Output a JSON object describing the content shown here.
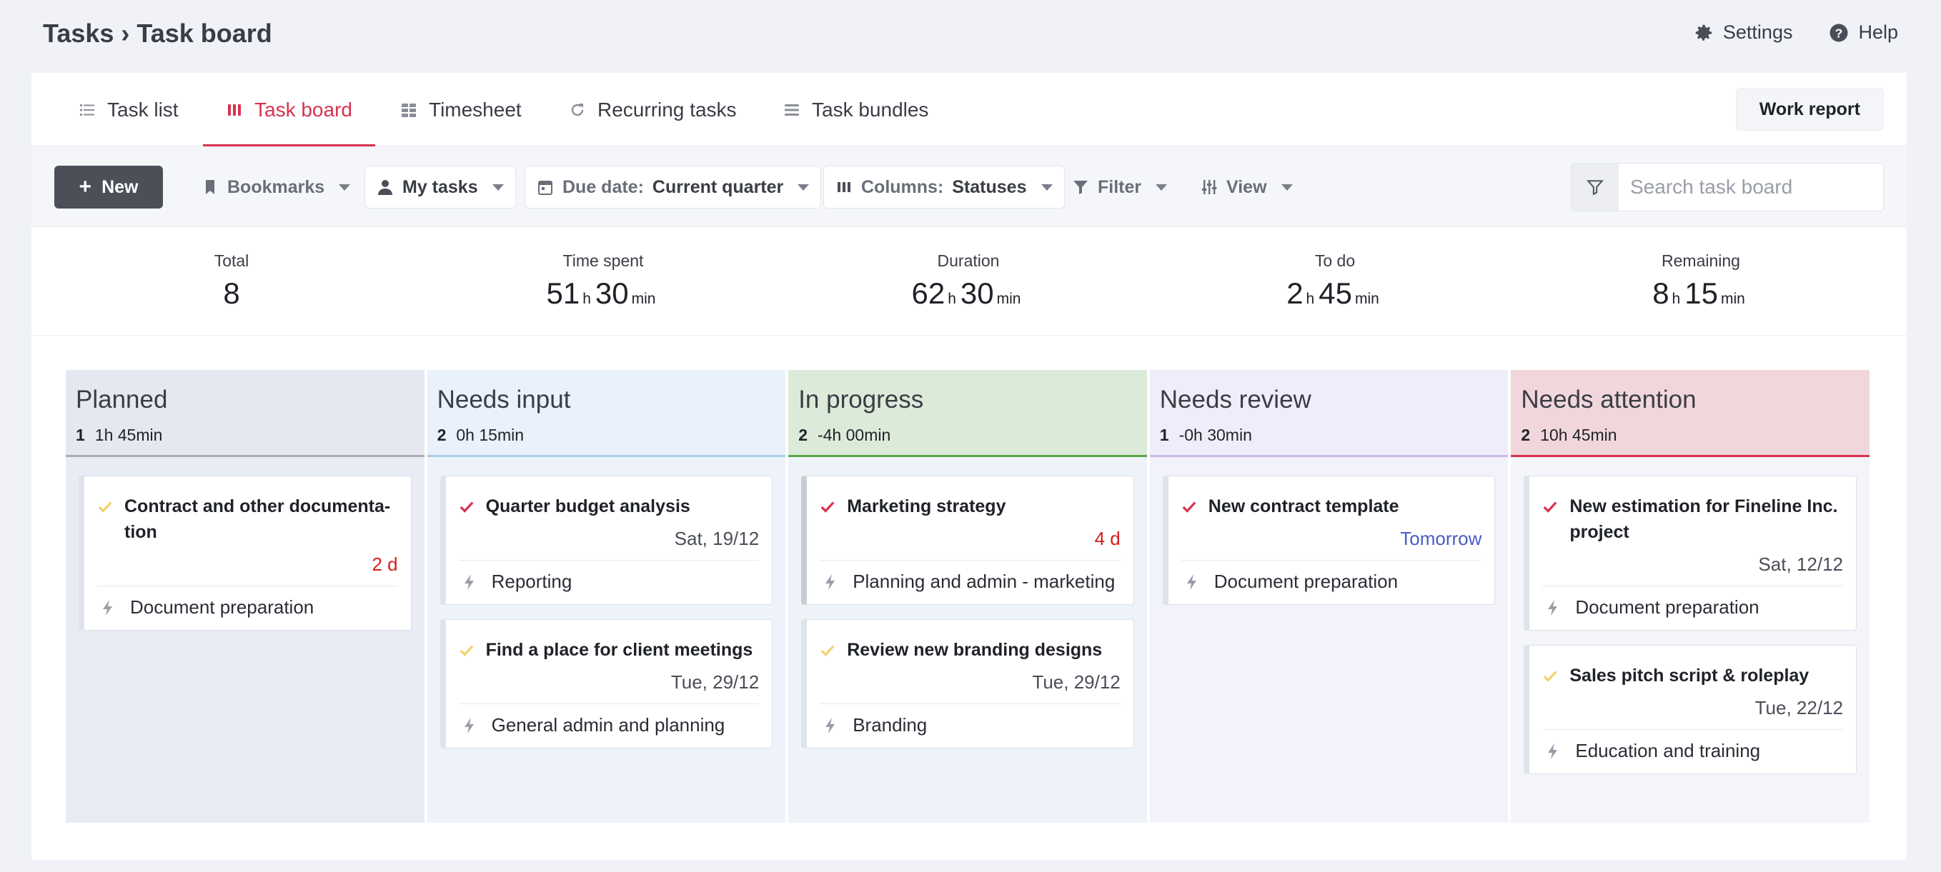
{
  "breadcrumb": "Tasks › Task board",
  "top_actions": {
    "settings": "Settings",
    "help": "Help"
  },
  "tabs": [
    {
      "label": "Task list",
      "icon": "list-icon"
    },
    {
      "label": "Task board",
      "icon": "board-icon",
      "active": true
    },
    {
      "label": "Timesheet",
      "icon": "timesheet-icon"
    },
    {
      "label": "Recurring tasks",
      "icon": "refresh-icon"
    },
    {
      "label": "Task bundles",
      "icon": "stack-icon"
    }
  ],
  "work_report_label": "Work report",
  "toolbar": {
    "new_label": "New",
    "bookmarks_label": "Bookmarks",
    "my_tasks_label": "My tasks",
    "due_date_prefix": "Due date:",
    "due_date_value": "Current quarter",
    "columns_prefix": "Columns:",
    "columns_value": "Statuses",
    "filter_label": "Filter",
    "view_label": "View",
    "search_placeholder": "Search task board"
  },
  "stats": [
    {
      "label": "Total",
      "parts": [
        [
          "8",
          ""
        ]
      ]
    },
    {
      "label": "Time spent",
      "parts": [
        [
          "51",
          "h"
        ],
        [
          "30",
          "min"
        ]
      ]
    },
    {
      "label": "Duration",
      "parts": [
        [
          "62",
          "h"
        ],
        [
          "30",
          "min"
        ]
      ]
    },
    {
      "label": "To do",
      "parts": [
        [
          "2",
          "h"
        ],
        [
          "45",
          "min"
        ]
      ]
    },
    {
      "label": "Remaining",
      "parts": [
        [
          "8",
          "h"
        ],
        [
          "15",
          "min"
        ]
      ]
    }
  ],
  "columns": [
    {
      "title": "Planned",
      "count": "1",
      "time": "1h 45min",
      "bg": "#e8ecf4",
      "head_bg": "#e5e8f0",
      "accent": "#a9adb6",
      "cards": [
        {
          "title": "Contract and other documenta- tion",
          "date": "2 d",
          "date_style": "red",
          "category": "Document preparation",
          "check_color": "#f1d36b",
          "stripe": "#dfe3eb"
        }
      ]
    },
    {
      "title": "Needs input",
      "count": "2",
      "time": "0h 15min",
      "bg": "#eef3fb",
      "head_bg": "#e9f1fb",
      "accent": "#a9cdec",
      "cards": [
        {
          "title": "Quarter budget analysis",
          "date": "Sat, 19/12",
          "date_style": "",
          "category": "Reporting",
          "check_color": "#d6324f",
          "stripe": "#dfe3eb"
        },
        {
          "title": "Find a place for client meetings",
          "date": "Tue, 29/12",
          "date_style": "",
          "category": "General admin and planning",
          "check_color": "#f1d36b",
          "stripe": "#dfe3eb"
        }
      ]
    },
    {
      "title": "In progress",
      "count": "2",
      "time": "-4h 00min",
      "bg": "#eef3f9",
      "head_bg": "#dcebd9",
      "accent": "#5aa84a",
      "cards": [
        {
          "title": "Marketing strategy",
          "date": "4 d",
          "date_style": "red",
          "category": "Planning and admin - marketing",
          "check_color": "#d6324f",
          "stripe": "#c9ccd3"
        },
        {
          "title": "Review new branding designs",
          "date": "Tue, 29/12",
          "date_style": "",
          "category": "Branding",
          "check_color": "#f1d36b",
          "stripe": "#dfe3eb"
        }
      ]
    },
    {
      "title": "Needs review",
      "count": "1",
      "time": "-0h 30min",
      "bg": "#f2f2fa",
      "head_bg": "#efedf9",
      "accent": "#cbb9e6",
      "cards": [
        {
          "title": "New contract template",
          "date": "Tomorrow",
          "date_style": "blue",
          "category": "Document preparation",
          "check_color": "#d6324f",
          "stripe": "#dfe3eb"
        }
      ]
    },
    {
      "title": "Needs attention",
      "count": "2",
      "time": "10h 45min",
      "bg": "#f3f5fa",
      "head_bg": "#f1d7dc",
      "accent": "#d6324f",
      "cards": [
        {
          "title": "New estimation for Fineline Inc. project",
          "date": "Sat, 12/12",
          "date_style": "",
          "category": "Document preparation",
          "check_color": "#d6324f",
          "stripe": "#dfe3eb"
        },
        {
          "title": "Sales pitch script & roleplay",
          "date": "Tue, 22/12",
          "date_style": "",
          "category": "Education and training",
          "check_color": "#f1d36b",
          "stripe": "#dfe3eb"
        }
      ]
    }
  ]
}
